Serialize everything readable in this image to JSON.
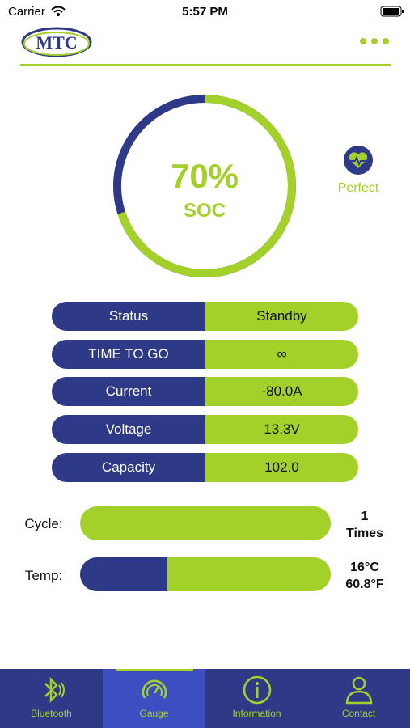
{
  "status_bar": {
    "carrier": "Carrier",
    "time": "5:57 PM"
  },
  "header": {
    "logo": "MTC"
  },
  "gauge": {
    "value": 70,
    "label": "70%",
    "caption": "SOC"
  },
  "health": "Perfect",
  "rows": [
    [
      "Status",
      "Standby"
    ],
    [
      "TIME TO GO",
      "∞"
    ],
    [
      "Current",
      "-80.0A"
    ],
    [
      "Voltage",
      "13.3V"
    ],
    [
      "Capacity",
      "102.0"
    ]
  ],
  "cycle": {
    "label": "Cycle:",
    "value": "1",
    "unit": "Times"
  },
  "temp": {
    "label": "Temp:",
    "celsius": "16°C",
    "fahrenheit": "60.8°F"
  },
  "tabs": [
    "Bluetooth",
    "Gauge",
    "Information",
    "Contact"
  ]
}
